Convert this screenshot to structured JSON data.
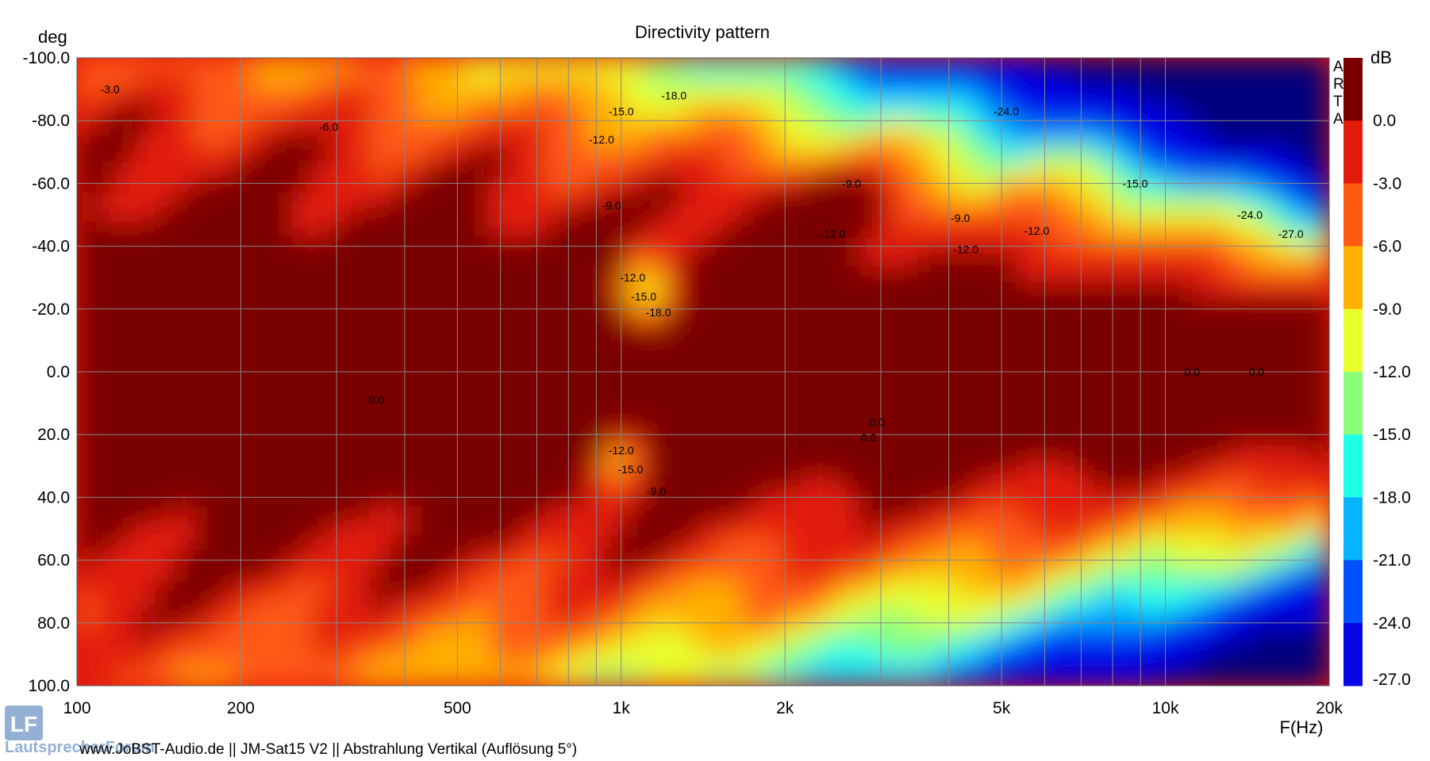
{
  "chart_data": {
    "type": "heatmap",
    "title": "Directivity pattern",
    "ylabel": "deg",
    "xlabel": "F(Hz)",
    "x_scale": "log",
    "xlim": [
      100,
      20000
    ],
    "ylim": [
      -100,
      100
    ],
    "x_ticks": [
      {
        "v": 100,
        "label": "100"
      },
      {
        "v": 200,
        "label": "200"
      },
      {
        "v": 500,
        "label": "500"
      },
      {
        "v": 1000,
        "label": "1k"
      },
      {
        "v": 2000,
        "label": "2k"
      },
      {
        "v": 5000,
        "label": "5k"
      },
      {
        "v": 10000,
        "label": "10k"
      },
      {
        "v": 20000,
        "label": "20k"
      }
    ],
    "y_ticks": [
      {
        "v": -100,
        "label": "-100.0"
      },
      {
        "v": -80,
        "label": "-80.0"
      },
      {
        "v": -60,
        "label": "-60.0"
      },
      {
        "v": -40,
        "label": "-40.0"
      },
      {
        "v": -20,
        "label": "-20.0"
      },
      {
        "v": 0,
        "label": "0.0"
      },
      {
        "v": 20,
        "label": "20.0"
      },
      {
        "v": 40,
        "label": "40.0"
      },
      {
        "v": 60,
        "label": "60.0"
      },
      {
        "v": 80,
        "label": "80.0"
      },
      {
        "v": 100,
        "label": "100.0"
      }
    ],
    "grid": true,
    "colorbar": {
      "unit": "dB",
      "levels": [
        {
          "label": "0.0",
          "lo": -3,
          "hi": 3,
          "color": "#7a0000"
        },
        {
          "label": "-3.0",
          "lo": -6,
          "hi": -3,
          "color": "#e31b0b"
        },
        {
          "label": "-6.0",
          "lo": -9,
          "hi": -6,
          "color": "#ff5a12"
        },
        {
          "label": "-9.0",
          "lo": -12,
          "hi": -9,
          "color": "#ffb000"
        },
        {
          "label": "-12.0",
          "lo": -15,
          "hi": -12,
          "color": "#e8ff2a"
        },
        {
          "label": "-15.0",
          "lo": -18,
          "hi": -15,
          "color": "#8cff7a"
        },
        {
          "label": "-18.0",
          "lo": -21,
          "hi": -18,
          "color": "#1effe8"
        },
        {
          "label": "-21.0",
          "lo": -24,
          "hi": -21,
          "color": "#06b4ff"
        },
        {
          "label": "-24.0",
          "lo": -27,
          "hi": -24,
          "color": "#0050ff"
        },
        {
          "label": "-27.0",
          "lo": -40,
          "hi": -27,
          "color": "#0606e6"
        }
      ],
      "bottom_label": "-27.0",
      "far_color": "#00007d"
    },
    "contour_labels": [
      {
        "f": 115,
        "deg": -90,
        "text": "-3.0"
      },
      {
        "f": 290,
        "deg": -78,
        "text": "-6.0"
      },
      {
        "f": 1000,
        "deg": -83,
        "text": "-15.0"
      },
      {
        "f": 1250,
        "deg": -88,
        "text": "-18.0"
      },
      {
        "f": 920,
        "deg": -74,
        "text": "-12.0"
      },
      {
        "f": 960,
        "deg": -53,
        "text": "-9.0"
      },
      {
        "f": 1050,
        "deg": -30,
        "text": "-12.0"
      },
      {
        "f": 1100,
        "deg": -24,
        "text": "-15.0"
      },
      {
        "f": 1170,
        "deg": -19,
        "text": "-18.0"
      },
      {
        "f": 2650,
        "deg": -60,
        "text": "-9.0"
      },
      {
        "f": 2450,
        "deg": -44,
        "text": "-12.0"
      },
      {
        "f": 5100,
        "deg": -83,
        "text": "-24.0"
      },
      {
        "f": 4200,
        "deg": -49,
        "text": "-9.0"
      },
      {
        "f": 4300,
        "deg": -39,
        "text": "-12.0"
      },
      {
        "f": 5800,
        "deg": -45,
        "text": "-12.0"
      },
      {
        "f": 8800,
        "deg": -60,
        "text": "-15.0"
      },
      {
        "f": 14300,
        "deg": -50,
        "text": "-24.0"
      },
      {
        "f": 17000,
        "deg": -44,
        "text": "-27.0"
      },
      {
        "f": 11200,
        "deg": 0,
        "text": "0.0"
      },
      {
        "f": 14700,
        "deg": 0,
        "text": "0.0"
      },
      {
        "f": 355,
        "deg": 9,
        "text": "0.0"
      },
      {
        "f": 2950,
        "deg": 16,
        "text": "0.0"
      },
      {
        "f": 2850,
        "deg": 21,
        "text": "0.0"
      },
      {
        "f": 1000,
        "deg": 25,
        "text": "-12.0"
      },
      {
        "f": 1040,
        "deg": 31,
        "text": "-15.0"
      },
      {
        "f": 1160,
        "deg": 38,
        "text": "-9.0"
      }
    ]
  },
  "side_label": [
    "A",
    "R",
    "T",
    "A"
  ],
  "footer_text": "www.JoBST-Audio.de  ||  JM-Sat15 V2  ||  Abstrahlung Vertikal (Auflösung 5°)",
  "watermark": {
    "logo_text": "LF",
    "text": "LautsprecherForum"
  }
}
